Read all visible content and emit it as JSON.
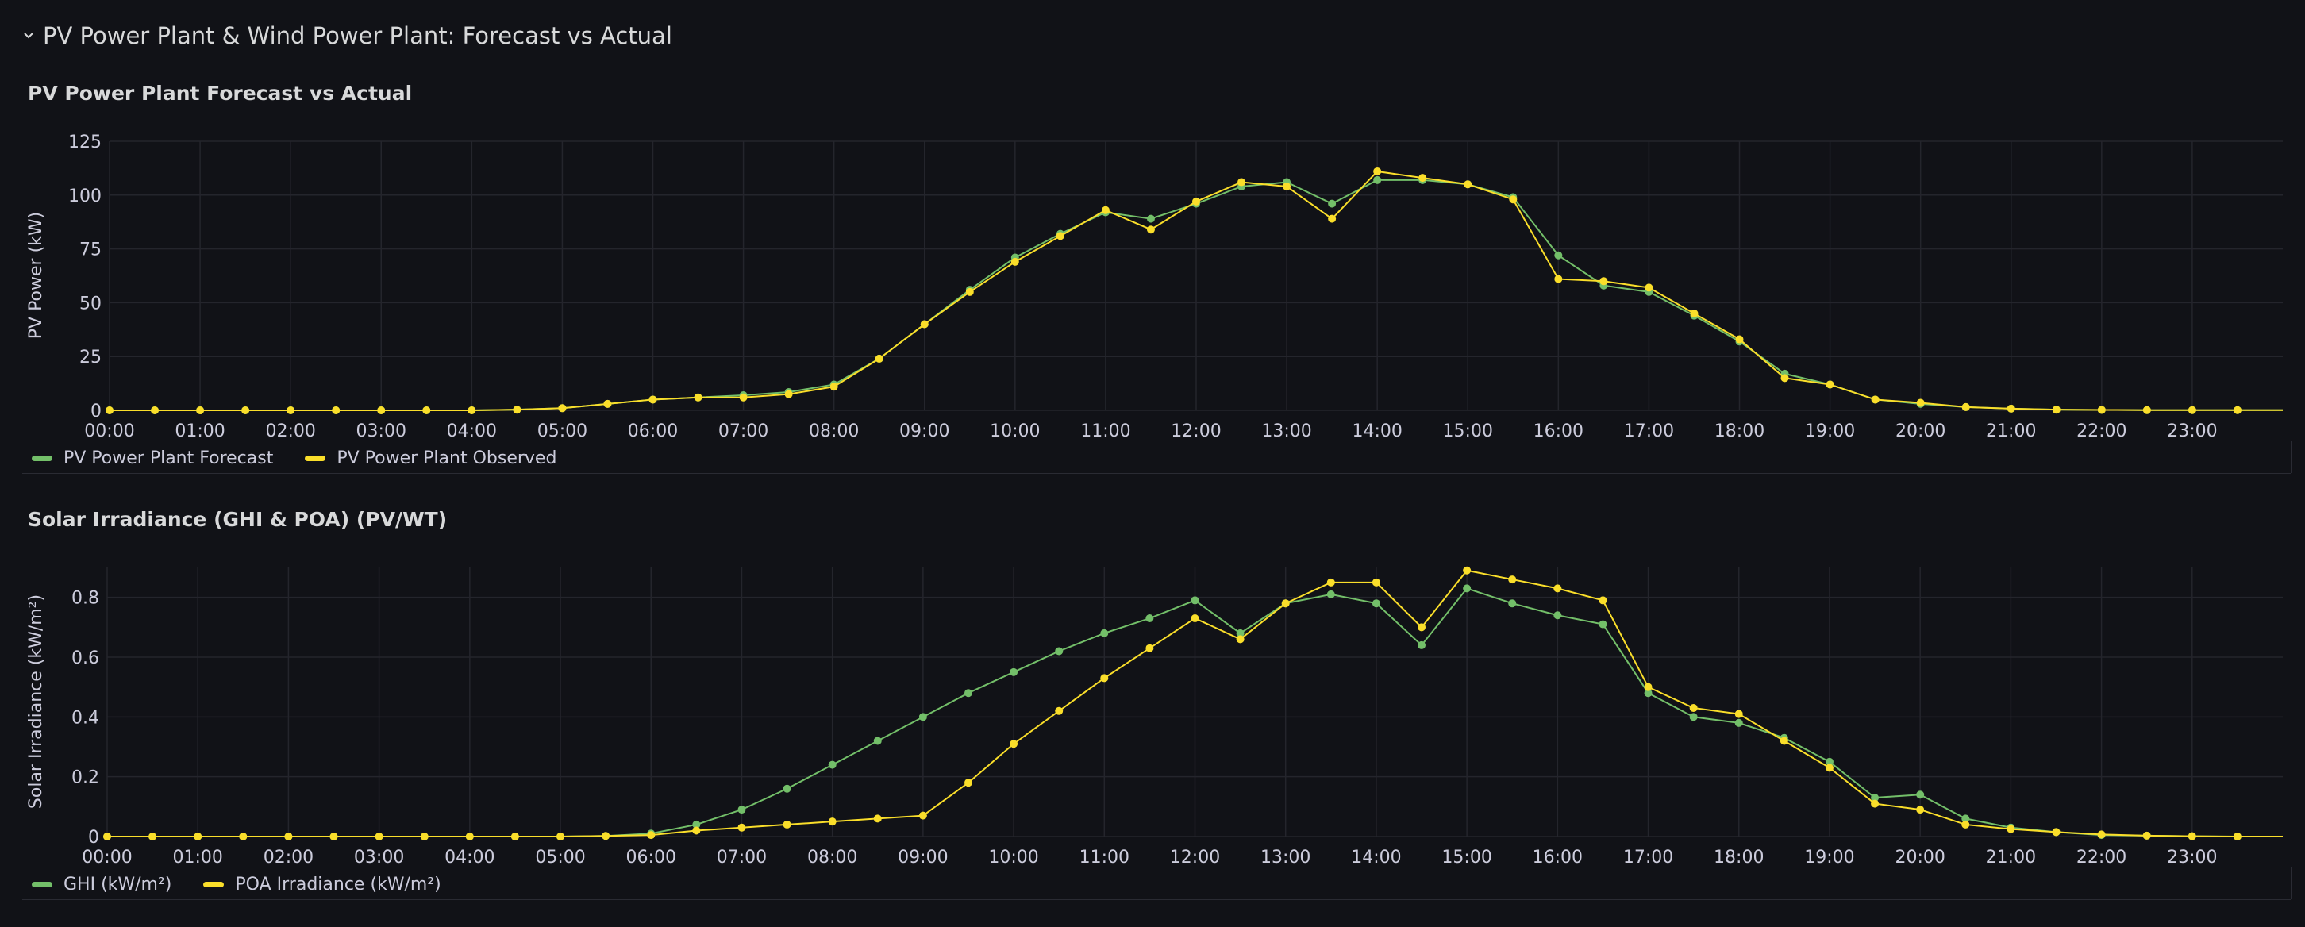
{
  "row": {
    "title": "PV Power Plant & Wind Power Plant: Forecast vs Actual",
    "icon": "chevron-down-icon"
  },
  "colors": {
    "green": "#73bf69",
    "yellow": "#fade2a",
    "grid": "#24252c",
    "axis_text": "#ccccdc"
  },
  "chart_data": [
    {
      "type": "line",
      "title": "PV Power Plant Forecast vs Actual",
      "ylabel": "PV Power (kW)",
      "xlabel": "",
      "ylim": [
        0,
        125
      ],
      "yticks": [
        0,
        25,
        50,
        75,
        100,
        125
      ],
      "xlim": [
        "00:00",
        "24:00"
      ],
      "xticks": [
        "00:00",
        "01:00",
        "02:00",
        "03:00",
        "04:00",
        "05:00",
        "06:00",
        "07:00",
        "08:00",
        "09:00",
        "10:00",
        "11:00",
        "12:00",
        "13:00",
        "14:00",
        "15:00",
        "16:00",
        "17:00",
        "18:00",
        "19:00",
        "20:00",
        "21:00",
        "22:00",
        "23:00"
      ],
      "x": [
        "00:00",
        "00:30",
        "01:00",
        "01:30",
        "02:00",
        "02:30",
        "03:00",
        "03:30",
        "04:00",
        "04:30",
        "05:00",
        "05:30",
        "06:00",
        "06:30",
        "07:00",
        "07:30",
        "08:00",
        "08:30",
        "09:00",
        "09:30",
        "10:00",
        "10:30",
        "11:00",
        "11:30",
        "12:00",
        "12:30",
        "13:00",
        "13:30",
        "14:00",
        "14:30",
        "15:00",
        "15:30",
        "16:00",
        "16:30",
        "17:00",
        "17:30",
        "18:00",
        "18:30",
        "19:00",
        "19:30",
        "20:00",
        "20:30",
        "21:00",
        "21:30",
        "22:00",
        "22:30",
        "23:00",
        "23:30"
      ],
      "series": [
        {
          "name": "PV Power Plant Forecast",
          "color": "green",
          "values": [
            0,
            0,
            0,
            0,
            0,
            0,
            0,
            0,
            0,
            0.3,
            1,
            3,
            5,
            6,
            7,
            8.5,
            12,
            24,
            40,
            56,
            71,
            82,
            92,
            89,
            96,
            104,
            106,
            96,
            107,
            107,
            105,
            99,
            72,
            58,
            55,
            44,
            32,
            17,
            12,
            5,
            3,
            1.5,
            0.8,
            0.3,
            0.2,
            0.1,
            0.1,
            0.1
          ]
        },
        {
          "name": "PV Power Plant Observed",
          "color": "yellow",
          "values": [
            0,
            0,
            0,
            0,
            0,
            0,
            0,
            0,
            0,
            0.3,
            1,
            3,
            5,
            6,
            6,
            7.5,
            11,
            24,
            40,
            55,
            69,
            81,
            93,
            84,
            97,
            106,
            104,
            89,
            111,
            108,
            105,
            98,
            61,
            60,
            57,
            45,
            33,
            15,
            12,
            5,
            3.5,
            1.5,
            0.8,
            0.3,
            0.2,
            0.1,
            0.1,
            0.1
          ]
        }
      ]
    },
    {
      "type": "line",
      "title": "Solar Irradiance (GHI & POA) (PV/WT)",
      "ylabel": "Solar Irradiance (kW/m²)",
      "xlabel": "",
      "ylim": [
        0,
        0.9
      ],
      "yticks": [
        0,
        0.2,
        0.4,
        0.6,
        0.8
      ],
      "ytick_labels": [
        "0",
        "0.2",
        "0.4",
        "0.6",
        "0.8"
      ],
      "xlim": [
        "00:00",
        "24:00"
      ],
      "xticks": [
        "00:00",
        "01:00",
        "02:00",
        "03:00",
        "04:00",
        "05:00",
        "06:00",
        "07:00",
        "08:00",
        "09:00",
        "10:00",
        "11:00",
        "12:00",
        "13:00",
        "14:00",
        "15:00",
        "16:00",
        "17:00",
        "18:00",
        "19:00",
        "20:00",
        "21:00",
        "22:00",
        "23:00"
      ],
      "x": [
        "00:00",
        "00:30",
        "01:00",
        "01:30",
        "02:00",
        "02:30",
        "03:00",
        "03:30",
        "04:00",
        "04:30",
        "05:00",
        "05:30",
        "06:00",
        "06:30",
        "07:00",
        "07:30",
        "08:00",
        "08:30",
        "09:00",
        "09:30",
        "10:00",
        "10:30",
        "11:00",
        "11:30",
        "12:00",
        "12:30",
        "13:00",
        "13:30",
        "14:00",
        "14:30",
        "15:00",
        "15:30",
        "16:00",
        "16:30",
        "17:00",
        "17:30",
        "18:00",
        "18:30",
        "19:00",
        "19:30",
        "20:00",
        "20:30",
        "21:00",
        "21:30",
        "22:00",
        "22:30",
        "23:00",
        "23:30"
      ],
      "series": [
        {
          "name": "GHI (kW/m²)",
          "color": "green",
          "values": [
            0,
            0,
            0,
            0,
            0,
            0,
            0,
            0,
            0,
            0,
            0,
            0.002,
            0.01,
            0.04,
            0.09,
            0.16,
            0.24,
            0.32,
            0.4,
            0.48,
            0.55,
            0.62,
            0.68,
            0.73,
            0.79,
            0.68,
            0.78,
            0.81,
            0.78,
            0.64,
            0.83,
            0.78,
            0.74,
            0.71,
            0.48,
            0.4,
            0.38,
            0.33,
            0.25,
            0.13,
            0.14,
            0.06,
            0.03,
            0.015,
            0.005,
            0.003,
            0.001,
            0
          ]
        },
        {
          "name": "POA Irradiance (kW/m²)",
          "color": "yellow",
          "values": [
            0,
            0,
            0,
            0,
            0,
            0,
            0,
            0,
            0,
            0,
            0,
            0.002,
            0.005,
            0.02,
            0.03,
            0.04,
            0.05,
            0.06,
            0.07,
            0.18,
            0.31,
            0.42,
            0.53,
            0.63,
            0.73,
            0.66,
            0.78,
            0.85,
            0.85,
            0.7,
            0.89,
            0.86,
            0.83,
            0.79,
            0.5,
            0.43,
            0.41,
            0.32,
            0.23,
            0.11,
            0.09,
            0.04,
            0.025,
            0.015,
            0.007,
            0.003,
            0.001,
            0
          ]
        }
      ]
    }
  ]
}
